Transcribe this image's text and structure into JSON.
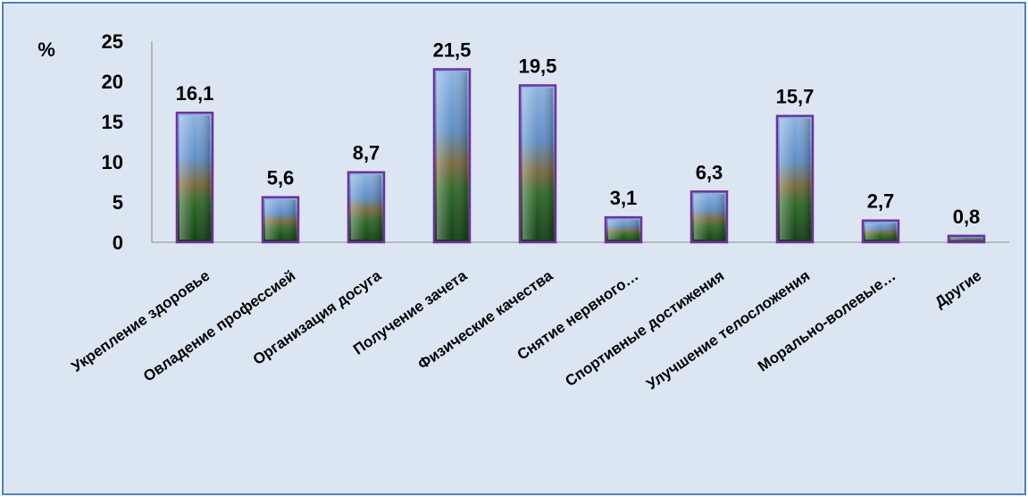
{
  "chart_data": {
    "type": "bar",
    "ylabel": "%",
    "ylim": [
      0,
      25
    ],
    "yticks": [
      "0",
      "5",
      "10",
      "15",
      "20",
      "25"
    ],
    "categories": [
      "Укрепление здоровье",
      "Овладение профессией",
      "Организация досуга",
      "Получение зачета",
      "Физические качества",
      "Снятие нервного…",
      "Спортивные достижения",
      "Улучшение телосложения",
      "Морально-волевые…",
      "Другие"
    ],
    "values": [
      16.1,
      5.6,
      8.7,
      21.5,
      19.5,
      3.1,
      6.3,
      15.7,
      2.7,
      0.8
    ],
    "data_labels": [
      "16,1",
      "5,6",
      "8,7",
      "21,5",
      "19,5",
      "3,1",
      "6,3",
      "15,7",
      "2,7",
      "0,8"
    ],
    "grid": false,
    "legend": "none",
    "colors": {
      "background": "#dce6f2",
      "border": "#4f81bd",
      "bar_frame": "#7030a0",
      "bar_sky": "#6fa8dc",
      "bar_forest": "#1e5a1e"
    }
  }
}
